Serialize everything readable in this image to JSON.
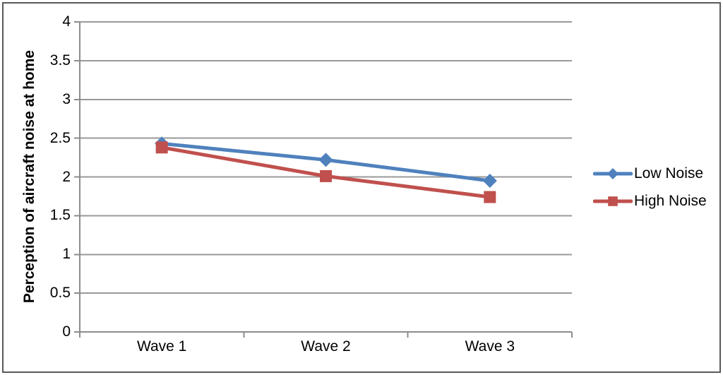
{
  "chart_data": {
    "type": "line",
    "title": "",
    "categories": [
      "Wave 1",
      "Wave 2",
      "Wave 3"
    ],
    "series": [
      {
        "name": "Low Noise",
        "marker": "diamond",
        "color": "#4F81BD",
        "values": [
          2.43,
          2.22,
          1.95
        ]
      },
      {
        "name": "High Noise",
        "marker": "square",
        "color": "#C0504D",
        "values": [
          2.38,
          2.01,
          1.74
        ]
      }
    ],
    "xlabel": "",
    "ylabel": "Perception of aircraft noise at home",
    "ylim": [
      0,
      4
    ],
    "ytick_step": 0.5,
    "ytick_labels": [
      "0",
      "0.5",
      "1",
      "1.5",
      "2",
      "2.5",
      "3",
      "3.5",
      "4"
    ],
    "grid": "horizontal",
    "legend_position": "right",
    "colors": {
      "gridline": "#999999",
      "axis": "#8C8C8C",
      "text": "#000000",
      "figure_border": "#595959",
      "background": "#FFFFFF"
    }
  }
}
